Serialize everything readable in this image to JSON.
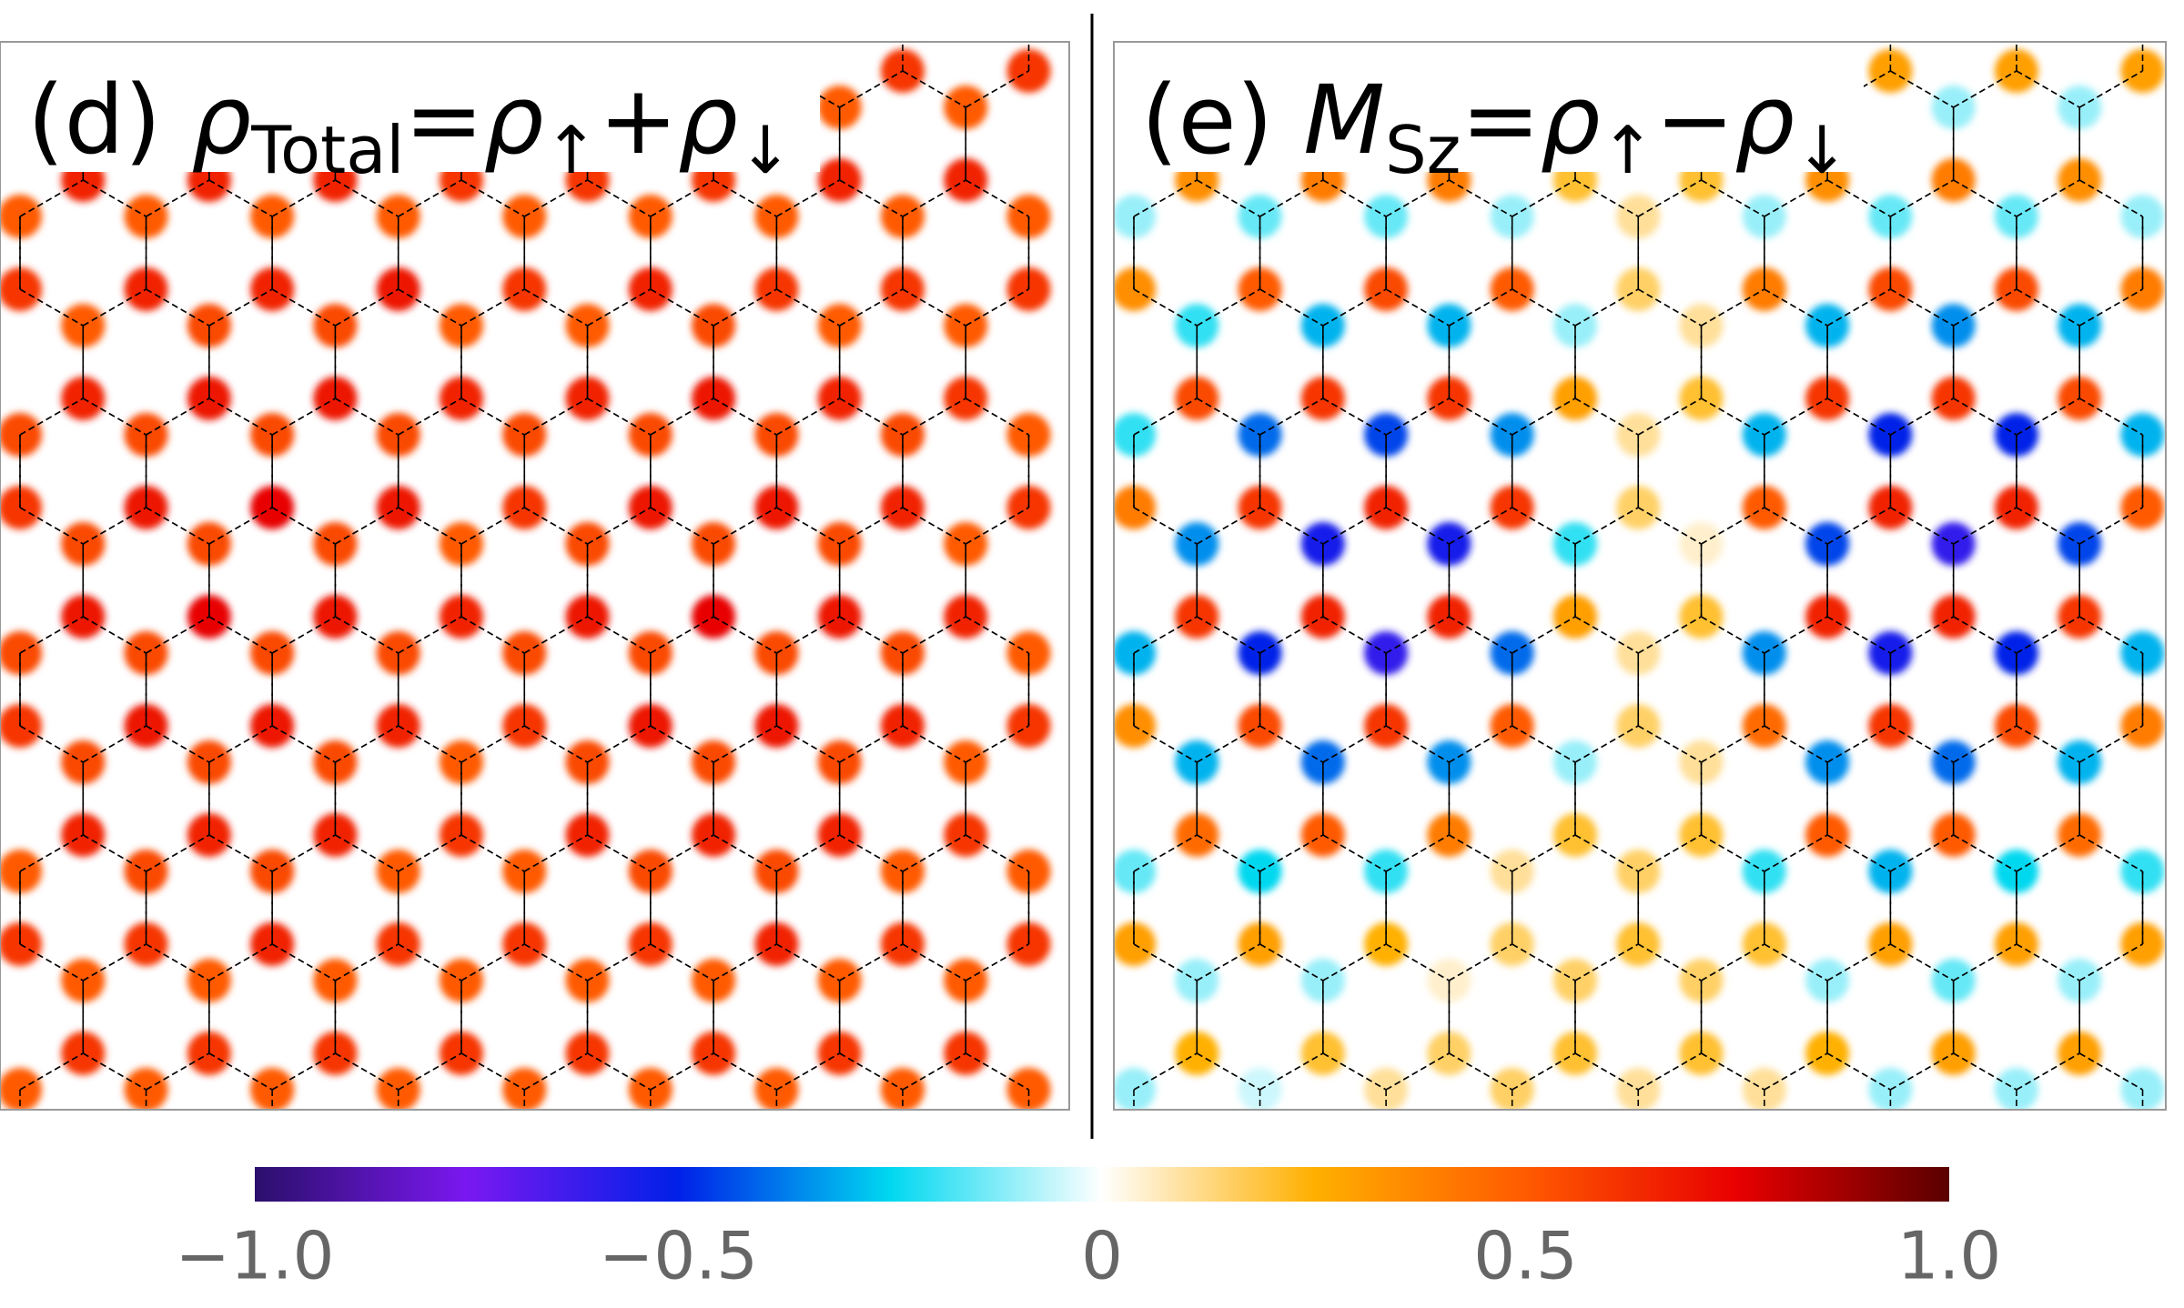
{
  "chart_data": [
    {
      "type": "lattice",
      "title_parts": [
        {
          "text": "(d) ",
          "style": "normal"
        },
        {
          "text": "ρ",
          "style": "italic"
        },
        {
          "text": "Total",
          "style": "sub"
        },
        {
          "text": "=",
          "style": "normal"
        },
        {
          "text": "ρ",
          "style": "italic"
        },
        {
          "text": "↑",
          "style": "sub"
        },
        {
          "text": "+",
          "style": "normal"
        },
        {
          "text": "ρ",
          "style": "italic"
        },
        {
          "text": "↓",
          "style": "sub"
        }
      ],
      "sites": [
        [
          0.6,
          0.5,
          0.6,
          0.5,
          0.6,
          0.5,
          0.6,
          0.5,
          0.6,
          0.5,
          0.6,
          0.5,
          0.6,
          0.5,
          0.6,
          0.5,
          0.6
        ],
        [
          0.5,
          0.65,
          0.5,
          0.65,
          0.5,
          0.65,
          0.5,
          0.6,
          0.5,
          0.6,
          0.5,
          0.6,
          0.5,
          0.65,
          0.5,
          0.65,
          0.5
        ],
        [
          0.6,
          0.5,
          0.65,
          0.55,
          0.65,
          0.55,
          0.7,
          0.5,
          0.6,
          0.5,
          0.65,
          0.55,
          0.6,
          0.5,
          0.6,
          0.5,
          0.6
        ],
        [
          0.55,
          0.65,
          0.55,
          0.7,
          0.55,
          0.7,
          0.55,
          0.65,
          0.55,
          0.65,
          0.55,
          0.7,
          0.55,
          0.65,
          0.55,
          0.6,
          0.5
        ],
        [
          0.6,
          0.55,
          0.7,
          0.55,
          0.75,
          0.55,
          0.7,
          0.5,
          0.6,
          0.55,
          0.7,
          0.55,
          0.7,
          0.55,
          0.65,
          0.5,
          0.6
        ],
        [
          0.55,
          0.7,
          0.55,
          0.75,
          0.55,
          0.7,
          0.55,
          0.65,
          0.55,
          0.7,
          0.55,
          0.75,
          0.55,
          0.7,
          0.55,
          0.65,
          0.5
        ],
        [
          0.6,
          0.55,
          0.7,
          0.55,
          0.7,
          0.55,
          0.65,
          0.5,
          0.6,
          0.55,
          0.7,
          0.55,
          0.7,
          0.55,
          0.65,
          0.5,
          0.6
        ],
        [
          0.5,
          0.65,
          0.55,
          0.65,
          0.55,
          0.65,
          0.5,
          0.6,
          0.5,
          0.65,
          0.55,
          0.65,
          0.55,
          0.65,
          0.5,
          0.6,
          0.5
        ],
        [
          0.6,
          0.5,
          0.6,
          0.5,
          0.65,
          0.5,
          0.6,
          0.5,
          0.6,
          0.5,
          0.6,
          0.5,
          0.65,
          0.5,
          0.6,
          0.5,
          0.6
        ],
        [
          0.5,
          0.6,
          0.5,
          0.6,
          0.5,
          0.6,
          0.5,
          0.6,
          0.5,
          0.6,
          0.5,
          0.6,
          0.5,
          0.6,
          0.5,
          0.6,
          0.5
        ]
      ]
    },
    {
      "type": "lattice",
      "title_parts": [
        {
          "text": "(e) ",
          "style": "normal"
        },
        {
          "text": "M",
          "style": "italic"
        },
        {
          "text": "Sz",
          "style": "sub"
        },
        {
          "text": "=",
          "style": "normal"
        },
        {
          "text": "ρ",
          "style": "italic"
        },
        {
          "text": "↑",
          "style": "sub"
        },
        {
          "text": "−",
          "style": "normal"
        },
        {
          "text": "ρ",
          "style": "italic"
        },
        {
          "text": "↓",
          "style": "sub"
        }
      ],
      "sites": [
        [
          0.3,
          -0.1,
          0.3,
          -0.1,
          0.3,
          -0.1,
          0.2,
          0.1,
          0.15,
          0.05,
          0.3,
          -0.1,
          0.3,
          -0.1,
          0.3,
          -0.1,
          0.3
        ],
        [
          -0.1,
          0.35,
          -0.15,
          0.4,
          -0.15,
          0.4,
          -0.1,
          0.2,
          0.1,
          0.2,
          -0.1,
          0.35,
          -0.15,
          0.4,
          -0.15,
          0.35,
          -0.1
        ],
        [
          0.35,
          -0.2,
          0.5,
          -0.3,
          0.55,
          -0.3,
          0.5,
          -0.1,
          0.15,
          0.1,
          0.4,
          -0.3,
          0.55,
          -0.35,
          0.55,
          -0.3,
          0.4
        ],
        [
          -0.2,
          0.55,
          -0.4,
          0.6,
          -0.45,
          0.6,
          -0.35,
          0.3,
          0.1,
          0.2,
          -0.3,
          0.6,
          -0.5,
          0.6,
          -0.5,
          0.55,
          -0.3
        ],
        [
          0.4,
          -0.35,
          0.6,
          -0.55,
          0.65,
          -0.55,
          0.6,
          -0.2,
          0.15,
          0.05,
          0.5,
          -0.45,
          0.65,
          -0.6,
          0.65,
          -0.45,
          0.5
        ],
        [
          -0.3,
          0.6,
          -0.5,
          0.65,
          -0.6,
          0.65,
          -0.4,
          0.3,
          0.1,
          0.2,
          -0.35,
          0.65,
          -0.55,
          0.65,
          -0.5,
          0.6,
          -0.3
        ],
        [
          0.35,
          -0.3,
          0.55,
          -0.4,
          0.6,
          -0.35,
          0.5,
          -0.1,
          0.15,
          0.1,
          0.45,
          -0.35,
          0.6,
          -0.4,
          0.55,
          -0.3,
          0.4
        ],
        [
          -0.15,
          0.45,
          -0.25,
          0.5,
          -0.2,
          0.4,
          0.1,
          0.2,
          0.15,
          0.2,
          -0.2,
          0.5,
          -0.3,
          0.5,
          -0.25,
          0.45,
          -0.2
        ],
        [
          0.3,
          -0.1,
          0.3,
          -0.1,
          0.25,
          0.05,
          0.15,
          0.15,
          0.2,
          0.15,
          0.2,
          -0.1,
          0.3,
          -0.15,
          0.3,
          -0.1,
          0.3
        ],
        [
          -0.1,
          0.25,
          -0.05,
          0.2,
          0.1,
          0.15,
          0.15,
          0.2,
          0.1,
          0.2,
          0.1,
          0.25,
          -0.1,
          0.3,
          -0.1,
          0.3,
          -0.1
        ]
      ]
    }
  ],
  "colorbar": {
    "lim": [
      -1,
      1
    ],
    "colors": [
      "#2b0f6b",
      "#7a18f0",
      "#0020e8",
      "#00d8f0",
      "#ffffff",
      "#ffb000",
      "#ff5a00",
      "#e80000",
      "#5a0000"
    ],
    "ticks": [
      {
        "value": -1,
        "label": "−1.0"
      },
      {
        "value": -0.5,
        "label": "−0.5"
      },
      0,
      {
        "value": 0.5,
        "label": "0.5"
      },
      {
        "value": 1,
        "label": "1.0"
      }
    ]
  }
}
